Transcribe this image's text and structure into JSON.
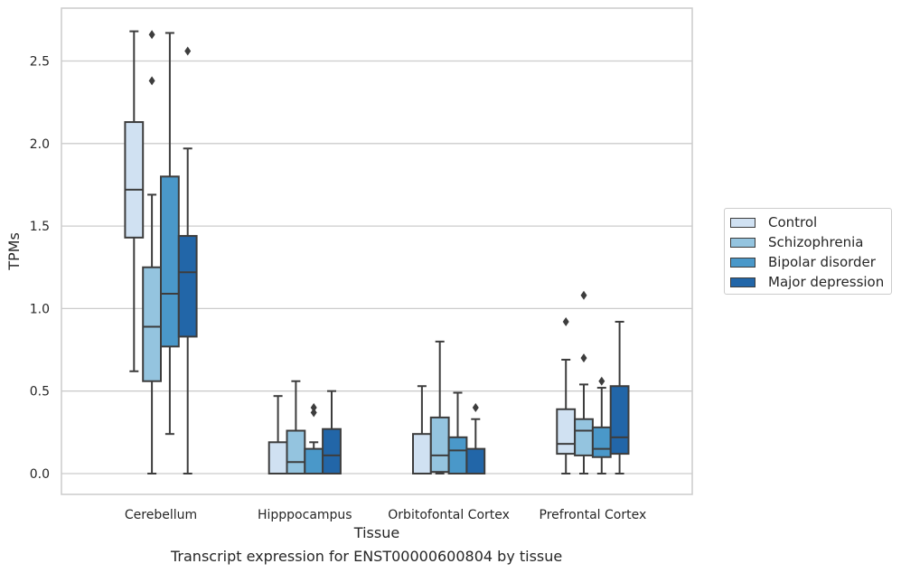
{
  "caption": "Transcript expression for ENST00000600804 by tissue",
  "chart_data": {
    "type": "box",
    "title": "",
    "xlabel": "Tissue",
    "ylabel": "TPMs",
    "ylim": [
      -0.13,
      2.82
    ],
    "yticks": [
      "0.0",
      "0.5",
      "1.0",
      "1.5",
      "2.0",
      "2.5"
    ],
    "grid": "horizontal",
    "legend_position": "center-right, outside plot",
    "categories": [
      "Cerebellum",
      "Hipppocampus",
      "Orbitofontal Cortex",
      "Prefrontal Cortex"
    ],
    "series": [
      {
        "name": "Control",
        "color": "#d0e1f2",
        "boxes": [
          {
            "min": 0.62,
            "q1": 1.43,
            "median": 1.72,
            "q3": 2.13,
            "max": 2.68,
            "outliers": []
          },
          {
            "min": 0.0,
            "q1": 0.0,
            "median": 0.0,
            "q3": 0.19,
            "max": 0.47,
            "outliers": []
          },
          {
            "min": 0.0,
            "q1": 0.0,
            "median": 0.0,
            "q3": 0.24,
            "max": 0.53,
            "outliers": []
          },
          {
            "min": 0.0,
            "q1": 0.12,
            "median": 0.18,
            "q3": 0.39,
            "max": 0.69,
            "outliers": [
              0.92
            ]
          }
        ]
      },
      {
        "name": "Schizophrenia",
        "color": "#94c4df",
        "boxes": [
          {
            "min": 0.0,
            "q1": 0.56,
            "median": 0.89,
            "q3": 1.25,
            "max": 1.69,
            "outliers": [
              2.38,
              2.66
            ]
          },
          {
            "min": 0.0,
            "q1": 0.0,
            "median": 0.07,
            "q3": 0.26,
            "max": 0.56,
            "outliers": []
          },
          {
            "min": 0.0,
            "q1": 0.01,
            "median": 0.11,
            "q3": 0.34,
            "max": 0.8,
            "outliers": []
          },
          {
            "min": 0.0,
            "q1": 0.11,
            "median": 0.26,
            "q3": 0.33,
            "max": 0.54,
            "outliers": [
              0.7,
              1.08
            ]
          }
        ]
      },
      {
        "name": "Bipolar disorder",
        "color": "#4a98c9",
        "boxes": [
          {
            "min": 0.24,
            "q1": 0.77,
            "median": 1.09,
            "q3": 1.8,
            "max": 2.67,
            "outliers": []
          },
          {
            "min": 0.0,
            "q1": 0.0,
            "median": 0.0,
            "q3": 0.15,
            "max": 0.19,
            "outliers": [
              0.37,
              0.4
            ]
          },
          {
            "min": 0.0,
            "q1": 0.0,
            "median": 0.14,
            "q3": 0.22,
            "max": 0.49,
            "outliers": []
          },
          {
            "min": 0.0,
            "q1": 0.1,
            "median": 0.15,
            "q3": 0.28,
            "max": 0.52,
            "outliers": [
              0.56
            ]
          }
        ]
      },
      {
        "name": "Major depression",
        "color": "#2266a8",
        "boxes": [
          {
            "min": 0.0,
            "q1": 0.83,
            "median": 1.22,
            "q3": 1.44,
            "max": 1.97,
            "outliers": [
              2.56
            ]
          },
          {
            "min": 0.0,
            "q1": 0.0,
            "median": 0.11,
            "q3": 0.27,
            "max": 0.5,
            "outliers": []
          },
          {
            "min": 0.0,
            "q1": 0.0,
            "median": 0.0,
            "q3": 0.15,
            "max": 0.33,
            "outliers": [
              0.4
            ]
          },
          {
            "min": 0.0,
            "q1": 0.12,
            "median": 0.22,
            "q3": 0.53,
            "max": 0.92,
            "outliers": []
          }
        ]
      }
    ]
  }
}
